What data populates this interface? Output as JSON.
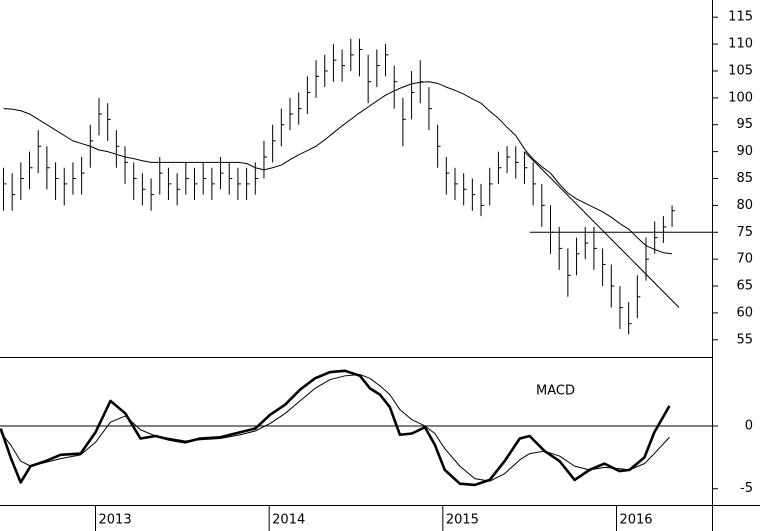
{
  "chart_data": [
    {
      "type": "ohlc",
      "xlim": [
        2012.45,
        2016.55
      ],
      "ylim": [
        51.8,
        118.2
      ],
      "yticks": [
        55,
        60,
        65,
        70,
        75,
        80,
        85,
        90,
        95,
        100,
        105,
        110,
        115
      ],
      "color": "#000000",
      "x": [
        2012.47,
        2012.52,
        2012.57,
        2012.62,
        2012.67,
        2012.72,
        2012.77,
        2012.82,
        2012.87,
        2012.92,
        2012.97,
        2013.02,
        2013.07,
        2013.12,
        2013.17,
        2013.22,
        2013.27,
        2013.32,
        2013.37,
        2013.42,
        2013.47,
        2013.52,
        2013.57,
        2013.62,
        2013.67,
        2013.72,
        2013.77,
        2013.82,
        2013.87,
        2013.92,
        2013.97,
        2014.02,
        2014.07,
        2014.12,
        2014.17,
        2014.22,
        2014.27,
        2014.32,
        2014.37,
        2014.42,
        2014.47,
        2014.52,
        2014.57,
        2014.62,
        2014.67,
        2014.72,
        2014.77,
        2014.82,
        2014.87,
        2014.92,
        2014.97,
        2015.02,
        2015.07,
        2015.12,
        2015.17,
        2015.22,
        2015.27,
        2015.32,
        2015.37,
        2015.42,
        2015.47,
        2015.52,
        2015.57,
        2015.62,
        2015.67,
        2015.72,
        2015.77,
        2015.82,
        2015.87,
        2015.92,
        2015.97,
        2016.02,
        2016.07,
        2016.12,
        2016.17,
        2016.22,
        2016.27,
        2016.32
      ],
      "high": [
        87,
        86,
        88,
        90,
        94,
        91,
        88,
        87,
        88,
        89,
        95,
        100,
        99,
        94,
        91,
        88,
        86,
        85,
        89,
        87,
        86,
        88,
        87,
        88,
        87,
        89,
        88,
        87,
        87,
        88,
        92,
        95,
        98,
        100,
        101,
        104,
        107,
        108,
        110,
        109,
        111,
        111,
        108,
        109,
        110,
        106,
        100,
        105,
        107,
        102,
        95,
        89,
        87,
        86,
        85,
        84,
        87,
        90,
        91,
        91,
        90,
        88,
        84,
        80,
        76,
        72,
        74,
        76,
        76,
        72,
        69,
        65,
        62,
        67,
        74,
        77,
        78,
        80
      ],
      "low": [
        79,
        79,
        81,
        83,
        86,
        83,
        81,
        80,
        82,
        82,
        87,
        93,
        92,
        87,
        84,
        81,
        80,
        79,
        82,
        81,
        80,
        82,
        81,
        82,
        81,
        83,
        82,
        81,
        81,
        82,
        85,
        88,
        91,
        94,
        95,
        97,
        100,
        102,
        103,
        103,
        105,
        104,
        99,
        102,
        104,
        98,
        91,
        96,
        99,
        94,
        87,
        82,
        81,
        80,
        79,
        78,
        80,
        84,
        86,
        85,
        84,
        80,
        76,
        71,
        68,
        63,
        67,
        70,
        68,
        65,
        61,
        57,
        56,
        59,
        66,
        71,
        73,
        76
      ],
      "close": [
        84,
        82,
        85,
        87,
        91,
        87,
        85,
        84,
        85,
        86,
        92,
        97,
        96,
        91,
        88,
        85,
        83,
        82,
        86,
        84,
        83,
        85,
        84,
        85,
        84,
        86,
        85,
        84,
        84,
        85,
        89,
        92,
        95,
        97,
        98,
        101,
        104,
        105,
        107,
        106,
        108,
        109,
        103,
        106,
        108,
        103,
        96,
        101,
        103,
        98,
        91,
        86,
        84,
        83,
        82,
        80,
        84,
        87,
        89,
        88,
        87,
        84,
        80,
        75,
        72,
        67,
        71,
        73,
        72,
        69,
        65,
        61,
        58,
        63,
        70,
        74,
        76,
        79
      ],
      "series": [
        {
          "color": "#000000",
          "width": 1,
          "values": [
            98,
            97.9,
            97.6,
            97,
            96,
            95,
            94,
            93,
            92,
            91.5,
            91,
            90.3,
            90,
            89.5,
            89,
            88.7,
            88.3,
            88,
            88,
            88,
            88,
            88,
            88,
            88,
            88,
            88,
            88,
            88,
            87.8,
            87,
            86.6,
            87,
            87.5,
            88.5,
            89.4,
            90.2,
            91,
            92.2,
            93.5,
            94.8,
            96,
            97.2,
            98.3,
            99.4,
            100.5,
            101.3,
            102,
            102.6,
            102.9,
            103,
            102.7,
            102,
            101.4,
            100.7,
            99.8,
            99,
            97.5,
            96.2,
            94.5,
            93,
            90.5,
            88.6,
            87.2,
            86,
            84,
            82.3,
            81.2,
            80.4,
            79.6,
            78.8,
            77.8,
            76.6,
            75.6,
            74,
            72.5,
            71.8,
            71.2,
            71
          ]
        }
      ],
      "lines": [
        {
          "x": [
            2015.47,
            2016.36
          ],
          "values": [
            90,
            61
          ]
        },
        {
          "x": [
            2015.5,
            2016.55
          ],
          "values": [
            75,
            75
          ]
        }
      ]
    },
    {
      "type": "line",
      "annotation": "MACD",
      "xlim": [
        2012.45,
        2016.55
      ],
      "ylim": [
        -6.3,
        5.5
      ],
      "yticks": [
        -5,
        0
      ],
      "xticks": [
        2013,
        2014,
        2015,
        2016
      ],
      "reference_line": 0,
      "x": [
        2012.454,
        2012.511,
        2012.569,
        2012.626,
        2012.713,
        2012.799,
        2012.914,
        2013.0,
        2013.086,
        2013.172,
        2013.259,
        2013.345,
        2013.431,
        2013.517,
        2013.603,
        2013.718,
        2013.833,
        2013.92,
        2014.006,
        2014.092,
        2014.178,
        2014.264,
        2014.351,
        2014.437,
        2014.523,
        2014.58,
        2014.638,
        2014.695,
        2014.753,
        2014.822,
        2014.897,
        2014.954,
        2015.011,
        2015.098,
        2015.184,
        2015.27,
        2015.356,
        2015.443,
        2015.5,
        2015.586,
        2015.672,
        2015.759,
        2015.845,
        2015.931,
        2016.017,
        2016.075,
        2016.161,
        2016.218,
        2016.305
      ],
      "series": [
        {
          "color": "#000000",
          "width": 2.6,
          "values": [
            -0.2,
            -2.5,
            -4.5,
            -3.2,
            -2.8,
            -2.3,
            -2.2,
            -0.5,
            2,
            1,
            -1,
            -0.8,
            -1.1,
            -1.3,
            -1,
            -0.9,
            -0.5,
            -0.2,
            0.9,
            1.7,
            2.9,
            3.8,
            4.3,
            4.4,
            4,
            3,
            2.5,
            1.5,
            -0.7,
            -0.6,
            -0.1,
            -1.5,
            -3.5,
            -4.6,
            -4.7,
            -4.3,
            -2.8,
            -1,
            -0.8,
            -2,
            -2.8,
            -4.3,
            -3.5,
            -3,
            -3.6,
            -3.5,
            -2.5,
            -0.5,
            1.6
          ]
        },
        {
          "color": "#000000",
          "width": 1,
          "values": [
            -0.5,
            -1.5,
            -2.8,
            -3.2,
            -2.9,
            -2.6,
            -2.3,
            -1.3,
            0.3,
            0.8,
            -0.3,
            -0.8,
            -1,
            -1.2,
            -1.1,
            -1,
            -0.7,
            -0.4,
            0.2,
            1,
            2,
            3,
            3.7,
            4,
            4.1,
            3.8,
            3.2,
            2.5,
            1.3,
            0.5,
            0,
            -0.6,
            -1.8,
            -3.2,
            -4.2,
            -4.4,
            -3.8,
            -2.7,
            -2.2,
            -2,
            -2.4,
            -3.2,
            -3.5,
            -3.3,
            -3.4,
            -3.5,
            -3,
            -2.2,
            -0.9
          ]
        }
      ]
    }
  ]
}
